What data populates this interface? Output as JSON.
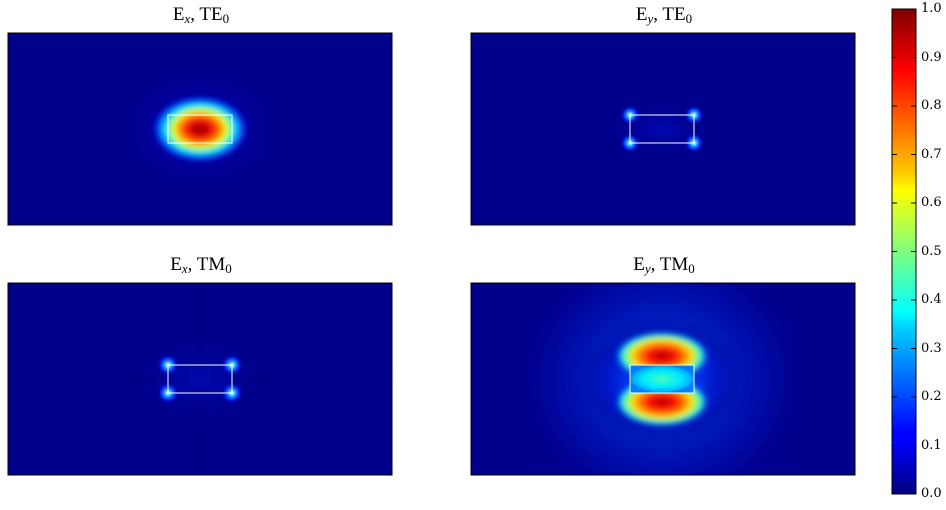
{
  "chart_data": {
    "type": "heatmap",
    "description_free": true,
    "colormap": "jet",
    "colorbar": {
      "min": 0.0,
      "max": 1.0,
      "ticks": [
        "0.0",
        "0.1",
        "0.2",
        "0.3",
        "0.4",
        "0.5",
        "0.6",
        "0.7",
        "0.8",
        "0.9",
        "1.0"
      ]
    },
    "panels": [
      {
        "id": "ex-te0",
        "title_base": "E",
        "title_sub": "x",
        "title_mode": "TE",
        "title_mode_sub": "0",
        "field_pattern": "core-centered",
        "peak": 1.0
      },
      {
        "id": "ey-te0",
        "title_base": "E",
        "title_sub": "y",
        "title_mode": "TE",
        "title_mode_sub": "0",
        "field_pattern": "corner-spots",
        "peak": 0.35
      },
      {
        "id": "ex-tm0",
        "title_base": "E",
        "title_sub": "x",
        "title_mode": "TM",
        "title_mode_sub": "0",
        "field_pattern": "corner-spots-quadrupole",
        "peak": 0.4
      },
      {
        "id": "ey-tm0",
        "title_base": "E",
        "title_sub": "y",
        "title_mode": "TM",
        "title_mode_sub": "0",
        "field_pattern": "top-bottom-lobes",
        "peak": 1.0
      }
    ]
  },
  "colors": {
    "background_field": "#00008b",
    "waveguide_outline": "#ffffff",
    "panel_border": "#000000"
  }
}
